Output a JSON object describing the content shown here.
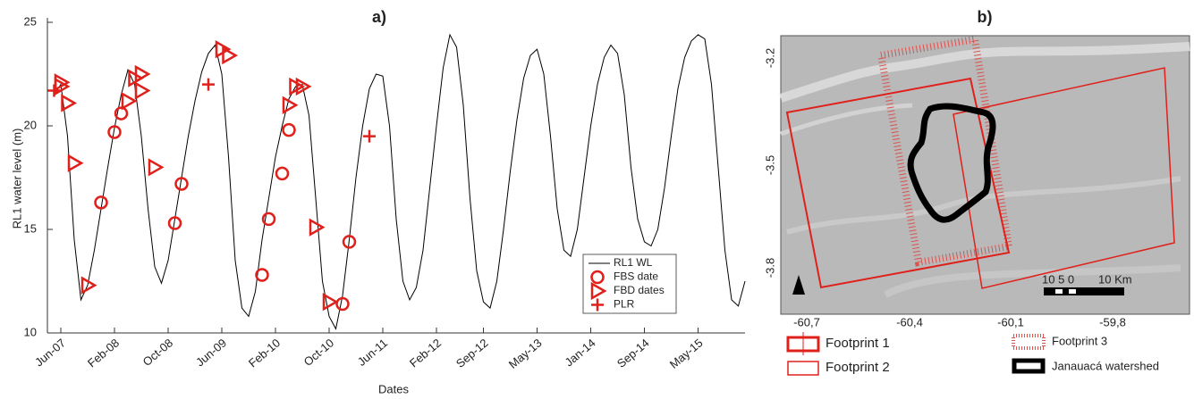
{
  "chart_data": {
    "type": "line",
    "title": "a)",
    "x_label": "Dates",
    "y_label": "RL1 water level (m)",
    "xlim": [
      "2007-04",
      "2015-12"
    ],
    "xticks": [
      {
        "value": "2007-06",
        "label": "Jun-07"
      },
      {
        "value": "2008-02",
        "label": "Feb-08"
      },
      {
        "value": "2008-10",
        "label": "Oct-08"
      },
      {
        "value": "2009-06",
        "label": "Jun-09"
      },
      {
        "value": "2010-02",
        "label": "Feb-10"
      },
      {
        "value": "2010-10",
        "label": "Oct-10"
      },
      {
        "value": "2011-06",
        "label": "Jun-11"
      },
      {
        "value": "2012-02",
        "label": "Feb-12"
      },
      {
        "value": "2012-09",
        "label": "Sep-12"
      },
      {
        "value": "2013-05",
        "label": "May-13"
      },
      {
        "value": "2014-01",
        "label": "Jan-14"
      },
      {
        "value": "2014-09",
        "label": "Sep-14"
      },
      {
        "value": "2015-05",
        "label": "May-15"
      }
    ],
    "ylim": [
      10,
      25
    ],
    "yticks": [
      10,
      15,
      20,
      25
    ],
    "legend": "lower right",
    "series": [
      {
        "name": "RL1 WL",
        "color": "#000000",
        "marker": "line",
        "x": [
          "2007-05",
          "2007-06",
          "2007-07",
          "2007-08",
          "2007-09",
          "2007-10",
          "2007-11",
          "2007-12",
          "2008-01",
          "2008-02",
          "2008-03",
          "2008-04",
          "2008-05",
          "2008-06",
          "2008-07",
          "2008-08",
          "2008-09",
          "2008-10",
          "2008-11",
          "2008-12",
          "2009-01",
          "2009-02",
          "2009-03",
          "2009-04",
          "2009-05",
          "2009-06",
          "2009-07",
          "2009-08",
          "2009-09",
          "2009-10",
          "2009-11",
          "2009-12",
          "2010-01",
          "2010-02",
          "2010-03",
          "2010-04",
          "2010-05",
          "2010-06",
          "2010-07",
          "2010-08",
          "2010-09",
          "2010-10",
          "2010-11",
          "2010-12",
          "2011-01",
          "2011-02",
          "2011-03",
          "2011-04",
          "2011-05",
          "2011-06",
          "2011-07",
          "2011-08",
          "2011-09",
          "2011-10",
          "2011-11",
          "2011-12",
          "2012-01",
          "2012-02",
          "2012-03",
          "2012-04",
          "2012-05",
          "2012-06",
          "2012-07",
          "2012-08",
          "2012-09",
          "2012-10",
          "2012-11",
          "2012-12",
          "2013-01",
          "2013-02",
          "2013-03",
          "2013-04",
          "2013-05",
          "2013-06",
          "2013-07",
          "2013-08",
          "2013-09",
          "2013-10",
          "2013-11",
          "2013-12",
          "2014-01",
          "2014-02",
          "2014-03",
          "2014-04",
          "2014-05",
          "2014-06",
          "2014-07",
          "2014-08",
          "2014-09",
          "2014-10",
          "2014-11",
          "2014-12",
          "2015-01",
          "2015-02",
          "2015-03",
          "2015-04",
          "2015-05",
          "2015-06",
          "2015-07",
          "2015-08",
          "2015-09",
          "2015-10",
          "2015-11",
          "2015-12"
        ],
        "values": [
          21.5,
          22.0,
          19.5,
          14.5,
          11.6,
          12.3,
          14.0,
          16.0,
          18.0,
          19.9,
          21.5,
          22.7,
          22.0,
          19.5,
          16.0,
          13.2,
          12.4,
          13.5,
          15.5,
          17.5,
          19.5,
          21.2,
          22.6,
          23.5,
          23.9,
          22.5,
          18.5,
          13.5,
          11.2,
          10.8,
          12.0,
          14.5,
          16.5,
          18.5,
          20.0,
          21.3,
          21.9,
          22.0,
          20.5,
          16.5,
          12.5,
          10.8,
          10.2,
          11.8,
          14.5,
          17.5,
          20.0,
          21.8,
          22.5,
          22.4,
          20.0,
          15.5,
          12.5,
          11.6,
          12.2,
          14.0,
          17.0,
          20.0,
          22.8,
          24.4,
          23.8,
          21.0,
          16.5,
          13.0,
          11.5,
          11.2,
          12.5,
          15.0,
          17.8,
          20.3,
          22.3,
          23.4,
          23.7,
          22.5,
          19.5,
          16.0,
          14.0,
          13.7,
          15.0,
          17.5,
          20.0,
          22.0,
          23.3,
          23.9,
          23.5,
          21.5,
          18.0,
          15.5,
          14.4,
          14.2,
          15.0,
          17.0,
          19.5,
          21.8,
          23.3,
          24.1,
          24.4,
          24.2,
          22.0,
          18.0,
          14.0,
          11.6,
          11.3,
          12.5
        ]
      },
      {
        "name": "FBS date",
        "color": "#e0201b",
        "marker": "circle",
        "x": [
          "2007-12",
          "2008-02",
          "2008-03",
          "2008-11",
          "2008-12",
          "2009-12",
          "2010-01",
          "2010-03",
          "2010-04",
          "2010-12",
          "2011-01"
        ],
        "values": [
          16.3,
          19.7,
          20.6,
          15.3,
          17.2,
          12.8,
          15.5,
          17.7,
          19.8,
          11.4,
          14.4
        ]
      },
      {
        "name": "FBD dates",
        "color": "#e0201b",
        "marker": "triangle",
        "x": [
          "2007-06",
          "2007-06",
          "2007-07",
          "2007-08",
          "2007-10",
          "2008-04",
          "2008-05",
          "2008-06",
          "2008-06",
          "2008-08",
          "2009-06",
          "2009-07",
          "2010-04",
          "2010-05",
          "2010-06",
          "2010-08",
          "2010-10"
        ],
        "values": [
          22.1,
          21.9,
          21.1,
          18.2,
          12.3,
          21.2,
          22.3,
          22.5,
          21.7,
          18.0,
          23.7,
          23.4,
          21.0,
          21.9,
          21.9,
          15.1,
          11.5
        ]
      },
      {
        "name": "PLR",
        "color": "#e0201b",
        "marker": "plus",
        "x": [
          "2007-05",
          "2009-04",
          "2011-04"
        ],
        "values": [
          21.7,
          22.0,
          19.5
        ]
      }
    ]
  },
  "map": {
    "title": "b)",
    "x_tick_labels": [
      "-60,7",
      "-60,4",
      "-60,1",
      "-59,8"
    ],
    "y_tick_labels": [
      "-3.2",
      "-3.5",
      "-3.8"
    ],
    "scale_labels": "10 5 0",
    "scale_unit": "10 Km",
    "legend": [
      "Footprint 1",
      "Footprint 2",
      "Footprint 3",
      "Janauacá watershed"
    ]
  }
}
